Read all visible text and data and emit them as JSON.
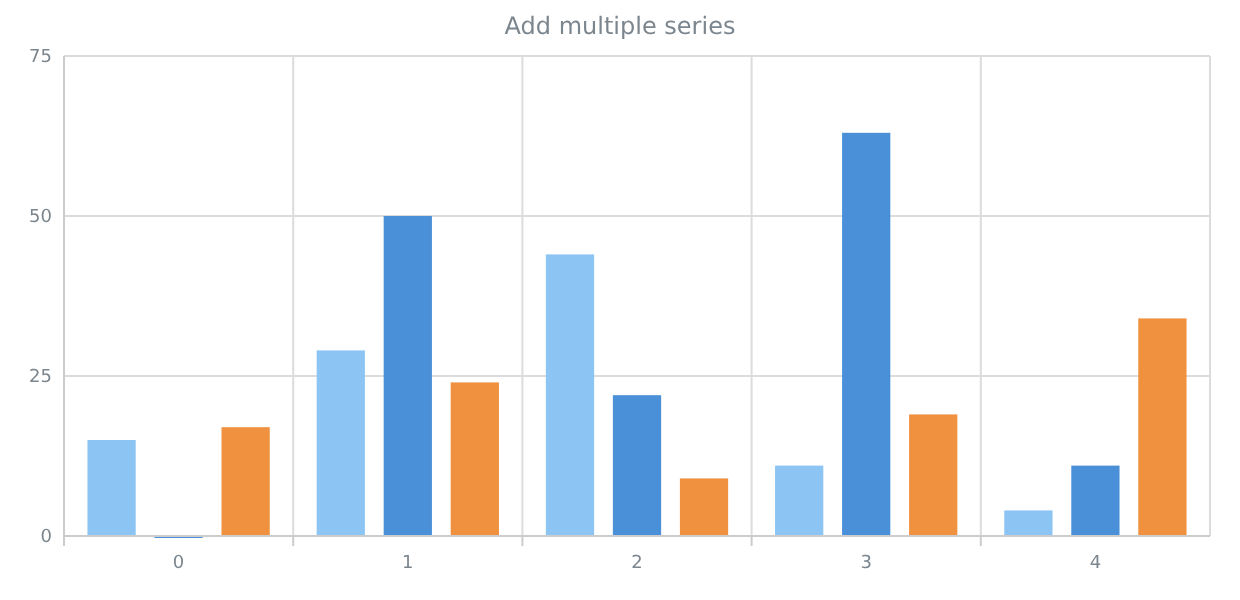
{
  "chart_data": {
    "type": "bar",
    "title": "Add multiple series",
    "categories": [
      "0",
      "1",
      "2",
      "3",
      "4"
    ],
    "series": [
      {
        "color": "#8cc5f3",
        "values": [
          15,
          29,
          44,
          11,
          4
        ]
      },
      {
        "color": "#4a90d9",
        "values": [
          0,
          50,
          22,
          63,
          11
        ]
      },
      {
        "color": "#f0913f",
        "values": [
          17,
          24,
          9,
          19,
          34
        ]
      }
    ],
    "ylim": [
      0,
      75
    ],
    "yticks": [
      0,
      25,
      50,
      75
    ],
    "grid": true
  }
}
